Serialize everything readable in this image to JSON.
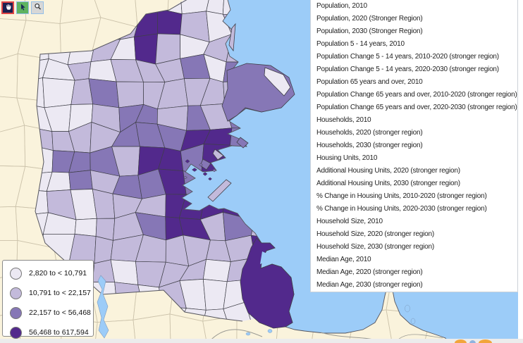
{
  "toolbar": {
    "buttons": [
      {
        "id": "pan-tool",
        "icon": "hand-icon",
        "selected": true
      },
      {
        "id": "select-tool",
        "icon": "cursor-icon",
        "selected": false
      },
      {
        "id": "zoom-tool",
        "icon": "magnifier-icon",
        "selected": false
      }
    ]
  },
  "menu": {
    "items": [
      "Population, 2010",
      "Population, 2020 (Stronger Region)",
      "Population, 2030 (Stronger Region)",
      "Population 5 - 14 years, 2010",
      "Population Change 5 - 14 years, 2010-2020 (stronger region)",
      "Population Change 5 - 14 years, 2020-2030 (stronger region)",
      "Population 65 years and over, 2010",
      "Population Change 65 years and over, 2010-2020 (stronger region)",
      "Population Change 65 years and over, 2020-2030 (stronger region)",
      "Households, 2010",
      "Households, 2020 (stronger region)",
      "Households, 2030 (stronger region)",
      "Housing Units, 2010",
      "Additional Housing Units, 2020 (stronger region)",
      "Additional Housing Units, 2030 (stronger region)",
      "% Change in Housing Units, 2010-2020 (stronger region)",
      "% Change in Housing Units, 2020-2030 (stronger region)",
      "Household Size, 2010",
      "Household Size, 2020 (stronger region)",
      "Household Size, 2030 (stronger region)",
      "Median Age, 2010",
      "Median Age, 2020 (stronger region)",
      "Median Age, 2030 (stronger region)"
    ]
  },
  "legend": {
    "classes": [
      {
        "label": "2,820 to < 10,791",
        "color": "#ECE9F3"
      },
      {
        "label": "10,791 to < 22,157",
        "color": "#C3BADB"
      },
      {
        "label": "22,157 to < 56,468",
        "color": "#8677B6"
      },
      {
        "label": "56,468 to 617,594",
        "color": "#52298C"
      }
    ]
  },
  "map": {
    "ocean_color": "#9CCCF8",
    "outside_land_color": "#FAF3DC",
    "town_border_color": "#3F3F48",
    "outside_border_color": "#CDC4AC",
    "region_border_color": "#55555E"
  }
}
